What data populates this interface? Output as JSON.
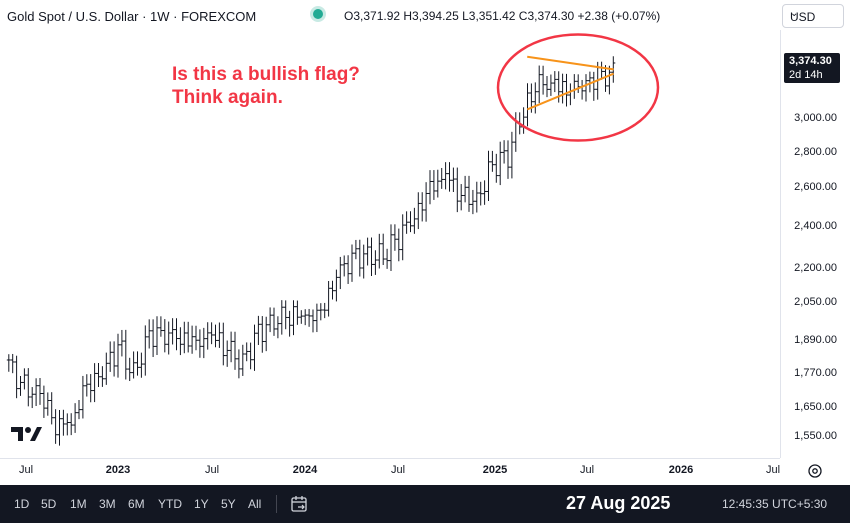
{
  "header": {
    "title": "Gold Spot / U.S. Dollar · 1W · FOREXCOM",
    "ohlc": "O3,371.92  H3,394.25  L3,351.42  C3,374.30  +2.38 (+0.07%)",
    "currency": "USD",
    "live_color": "#22ab94"
  },
  "annotation": {
    "line1": "Is this a bullish flag?",
    "line2": "Think again.",
    "color": "#f23645"
  },
  "price_axis": {
    "ticks": [
      "3,000.00",
      "2,800.00",
      "2,600.00",
      "2,400.00",
      "2,200.00",
      "2,050.00",
      "1,890.00",
      "1,770.00",
      "1,650.00",
      "1,550.00"
    ],
    "last_price": "3,374.30",
    "countdown": "2d 14h"
  },
  "time_axis": {
    "ticks": [
      "Jul",
      "2023",
      "Jul",
      "2024",
      "Jul",
      "2025",
      "Jul",
      "2026",
      "Jul"
    ]
  },
  "bottom_bar": {
    "timeframes": [
      "1D",
      "5D",
      "1M",
      "3M",
      "6M",
      "YTD",
      "1Y",
      "5Y",
      "All"
    ],
    "date": "27 Aug 2025",
    "clock": "12:45:35 UTC+5:30"
  },
  "chart_data": {
    "type": "ohlc",
    "symbol": "XAUUSD",
    "interval": "1W",
    "y_scale": "log",
    "ylim": [
      1500,
      3600
    ],
    "bar_color": "#131722",
    "pattern_color": "#f7931a",
    "highlight_color": "#f23645",
    "x": [
      "2022-06",
      "2022-07",
      "2022-08",
      "2022-09",
      "2022-10",
      "2022-11",
      "2022-12",
      "2023-01",
      "2023-02",
      "2023-03",
      "2023-04",
      "2023-05",
      "2023-06",
      "2023-07",
      "2023-08",
      "2023-09",
      "2023-10",
      "2023-11",
      "2023-12",
      "2024-01",
      "2024-02",
      "2024-03",
      "2024-04",
      "2024-05",
      "2024-06",
      "2024-07",
      "2024-08",
      "2024-09",
      "2024-10",
      "2024-11",
      "2024-12",
      "2025-01",
      "2025-02",
      "2025-03",
      "2025-04",
      "2025-05",
      "2025-06",
      "2025-07",
      "2025-08"
    ],
    "close": [
      1850,
      1770,
      1760,
      1650,
      1640,
      1760,
      1810,
      1930,
      1820,
      1980,
      1990,
      1960,
      1920,
      1960,
      1920,
      1870,
      1990,
      2040,
      2060,
      2030,
      2040,
      2230,
      2330,
      2330,
      2330,
      2420,
      2500,
      2640,
      2740,
      2650,
      2620,
      2800,
      2860,
      3120,
      3290,
      3290,
      3300,
      3340,
      3374.3
    ],
    "pattern": {
      "type": "triangle",
      "upper_line": [
        [
          "2025-04",
          3500
        ],
        [
          "2025-08",
          3410
        ]
      ],
      "lower_line": [
        [
          "2025-04",
          3140
        ],
        [
          "2025-08",
          3380
        ]
      ]
    }
  }
}
